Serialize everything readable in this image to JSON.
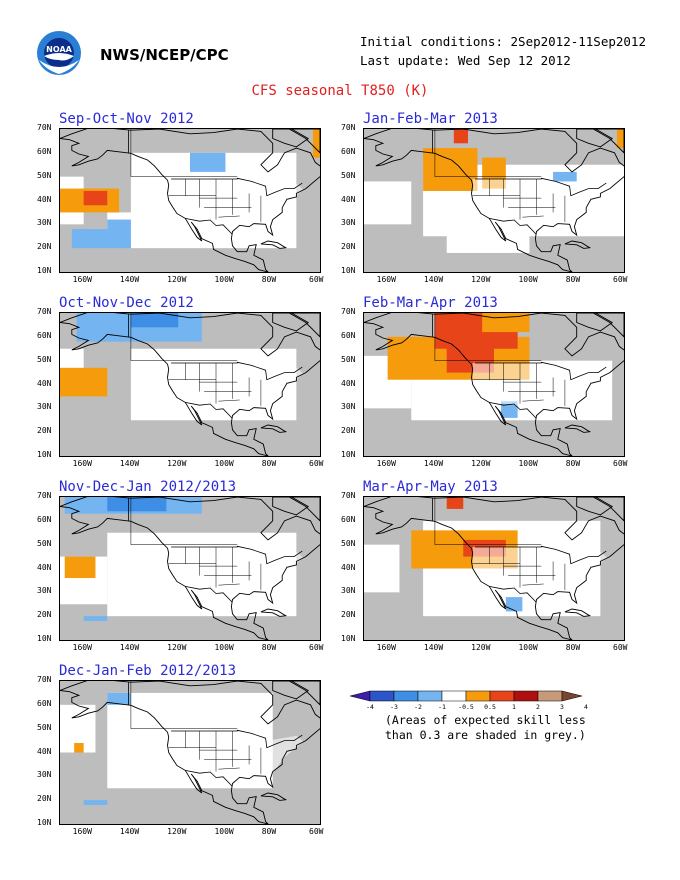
{
  "header": {
    "org": "NWS/NCEP/CPC",
    "initial_conditions": "Initial conditions: 2Sep2012-11Sep2012",
    "last_update": "Last update: Wed Sep 12 2012",
    "title": "CFS seasonal T850 (K)"
  },
  "axes": {
    "lat_labels": [
      "70N",
      "60N",
      "50N",
      "40N",
      "30N",
      "20N",
      "10N"
    ],
    "lon_labels": [
      "160W",
      "140W",
      "120W",
      "100W",
      "80W",
      "60W"
    ]
  },
  "panels": [
    {
      "id": "son",
      "title": "Sep-Oct-Nov 2012"
    },
    {
      "id": "jfm",
      "title": "Jan-Feb-Mar 2013"
    },
    {
      "id": "ond",
      "title": "Oct-Nov-Dec 2012"
    },
    {
      "id": "fma",
      "title": "Feb-Mar-Apr 2013"
    },
    {
      "id": "ndj",
      "title": "Nov-Dec-Jan 2012/2013"
    },
    {
      "id": "mam",
      "title": "Mar-Apr-May 2013"
    },
    {
      "id": "djf",
      "title": "Dec-Jan-Feb 2012/2013"
    }
  ],
  "legend": {
    "ticks": [
      "-4",
      "-3",
      "-2",
      "-1",
      "-0.5",
      "0.5",
      "1",
      "2",
      "3",
      "4"
    ],
    "colors": [
      "#3d1fa8",
      "#2b55c9",
      "#3e8ee6",
      "#74b4f0",
      "#ffffff",
      "#f59b0c",
      "#e8441a",
      "#b0100f",
      "#c89a7a",
      "#7a4530"
    ],
    "note_line1": "(Areas of expected skill less",
    "note_line2": "than 0.3 are shaded in grey.)"
  },
  "colors": {
    "grey": "#bdbdbd",
    "title_red": "#e02020",
    "panel_title_blue": "#2a2ad6"
  }
}
